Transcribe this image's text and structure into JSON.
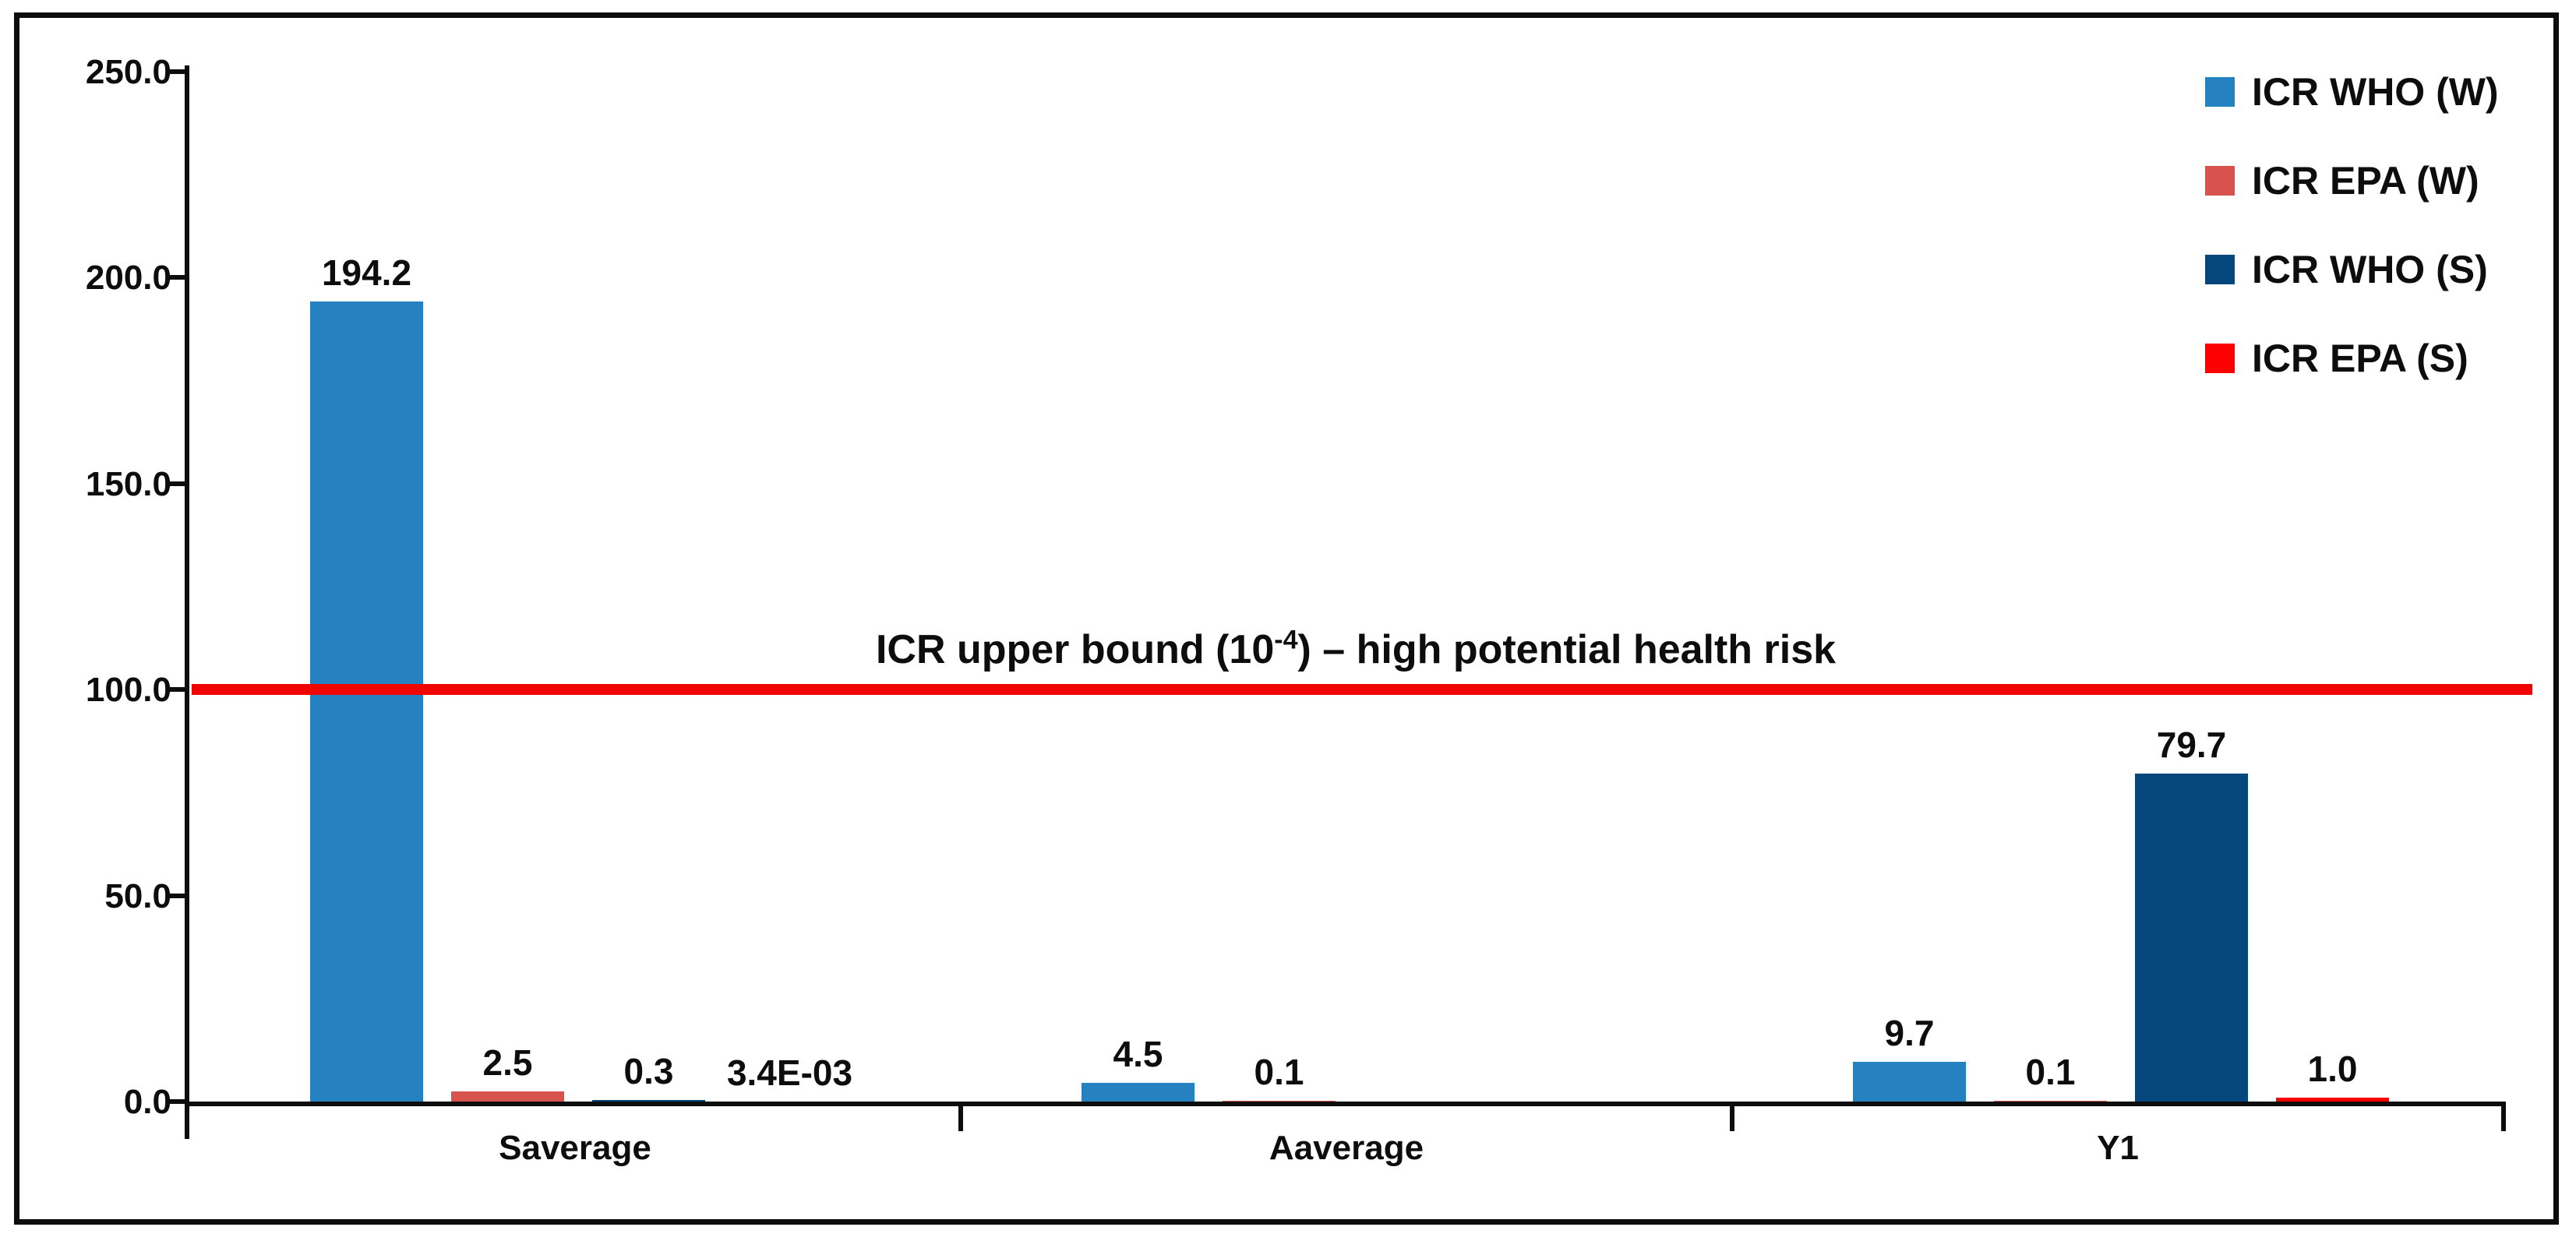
{
  "chart_data": {
    "type": "bar",
    "title": "",
    "xlabel": "",
    "ylabel": "",
    "categories": [
      "Saverage",
      "Aaverage",
      "Y1"
    ],
    "series": [
      {
        "name": "ICR WHO (W)",
        "color": "#2681C0",
        "values": [
          194.2,
          4.5,
          9.7
        ],
        "labels": [
          "194.2",
          "4.5",
          "9.7"
        ]
      },
      {
        "name": "ICR EPA (W)",
        "color": "#D9534E",
        "values": [
          2.5,
          0.1,
          0.1
        ],
        "labels": [
          "2.5",
          "0.1",
          "0.1"
        ]
      },
      {
        "name": "ICR WHO (S)",
        "color": "#05477C",
        "values": [
          0.3,
          null,
          79.7
        ],
        "labels": [
          "0.3",
          null,
          "79.7"
        ]
      },
      {
        "name": "ICR EPA (S)",
        "color": "#FC0000",
        "values": [
          0.0034,
          null,
          1.0
        ],
        "labels": [
          "3.4E-03",
          null,
          "1.0"
        ]
      }
    ],
    "ylim": [
      0,
      250
    ],
    "yticks": [
      {
        "value": 0,
        "label": "0.0"
      },
      {
        "value": 50,
        "label": "50.0"
      },
      {
        "value": 100,
        "label": "100.0"
      },
      {
        "value": 150,
        "label": "150.0"
      },
      {
        "value": 200,
        "label": "200.0"
      },
      {
        "value": 250,
        "label": "250.0"
      }
    ],
    "grid": false,
    "legend_position": "top-right",
    "threshold": {
      "value": 100,
      "color": "#F00500",
      "annotation_prefix": "ICR upper bound (10",
      "annotation_sup": "-4",
      "annotation_suffix": ") – high potential health risk"
    }
  }
}
